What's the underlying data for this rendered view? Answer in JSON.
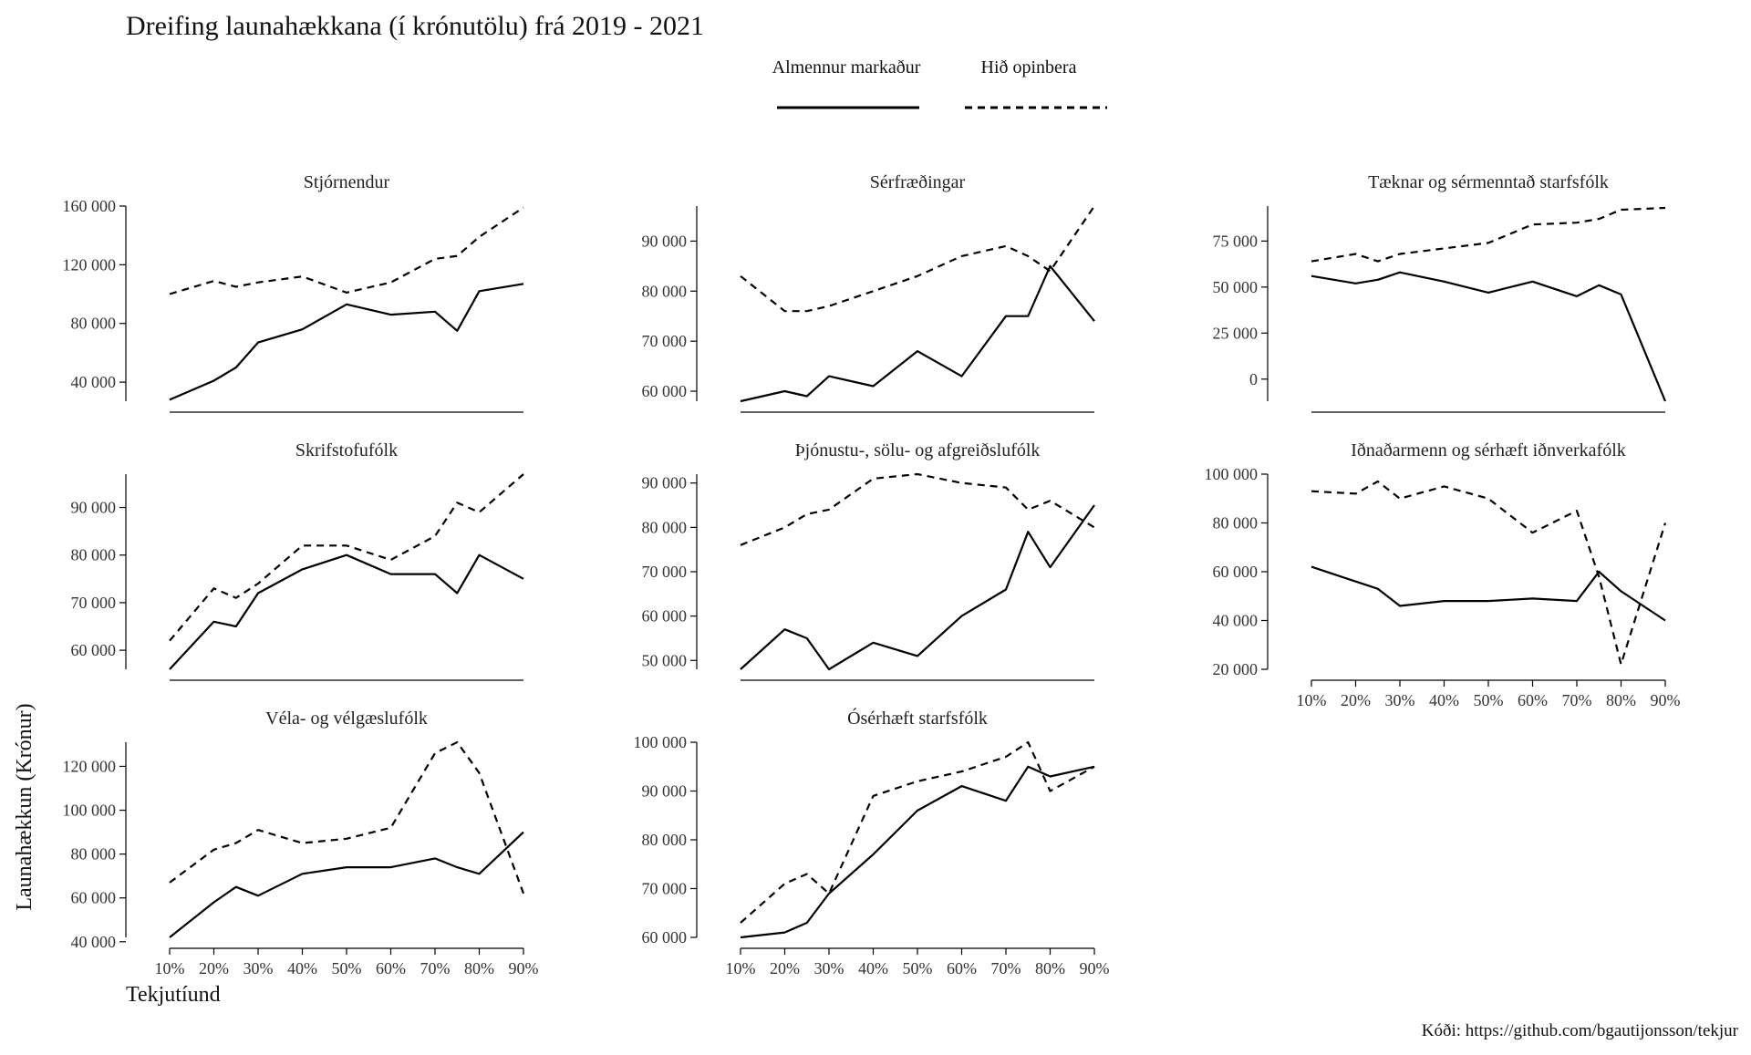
{
  "title": "Dreifing launahækkana (í krónutölu) frá 2019 - 2021",
  "caption": "Kóði: https://github.com/bgautijonsson/tekjur",
  "xlabel": "Tekjutíund",
  "ylabel": "Launahækkun (Krónur)",
  "legend": {
    "items": [
      {
        "label": "Almennur markaður",
        "linetype": "solid"
      },
      {
        "label": "Hið opinbera",
        "linetype": "dashed"
      }
    ]
  },
  "chart_data": {
    "type": "line",
    "layout": "facet",
    "x": [
      10,
      20,
      25,
      30,
      40,
      50,
      60,
      70,
      75,
      80,
      90
    ],
    "x_ticks": [
      10,
      20,
      30,
      40,
      50,
      60,
      70,
      80,
      90
    ],
    "x_tick_labels": [
      "10%",
      "20%",
      "30%",
      "40%",
      "50%",
      "60%",
      "70%",
      "80%",
      "90%"
    ],
    "xlim": [
      10,
      90
    ],
    "panels": [
      {
        "title": "Stjórnendur",
        "ylim": [
          27000,
          160000
        ],
        "y_ticks": [
          40000,
          80000,
          120000,
          160000
        ],
        "y_tick_labels": [
          "40 000",
          "80 000",
          "120 000",
          "160 000"
        ],
        "series": [
          {
            "name": "Almennur markaður",
            "values": [
              28000,
              41000,
              50000,
              67000,
              76000,
              93000,
              86000,
              88000,
              75000,
              102000,
              107000
            ]
          },
          {
            "name": "Hið opinbera",
            "values": [
              100000,
              109000,
              105000,
              108000,
              112000,
              101000,
              108000,
              124000,
              126000,
              139000,
              159000
            ]
          }
        ]
      },
      {
        "title": "Sérfræðingar",
        "ylim": [
          58000,
          97000
        ],
        "y_ticks": [
          60000,
          70000,
          80000,
          90000
        ],
        "y_tick_labels": [
          "60 000",
          "70 000",
          "80 000",
          "90 000"
        ],
        "series": [
          {
            "name": "Almennur markaður",
            "values": [
              58000,
              60000,
              59000,
              63000,
              61000,
              68000,
              63000,
              75000,
              75000,
              85000,
              74000
            ]
          },
          {
            "name": "Hið opinbera",
            "values": [
              83000,
              76000,
              76000,
              77000,
              80000,
              83000,
              87000,
              89000,
              87000,
              84000,
              97000
            ]
          }
        ]
      },
      {
        "title": "Tæknar og sérmenntað starfsfólk",
        "ylim": [
          -12000,
          94000
        ],
        "y_ticks": [
          0,
          25000,
          50000,
          75000
        ],
        "y_tick_labels": [
          "0",
          "25 000",
          "50 000",
          "75 000"
        ],
        "series": [
          {
            "name": "Almennur markaður",
            "values": [
              56000,
              52000,
              54000,
              58000,
              53000,
              47000,
              53000,
              45000,
              51000,
              46000,
              -12000
            ]
          },
          {
            "name": "Hið opinbera",
            "values": [
              64000,
              68000,
              64000,
              68000,
              71000,
              74000,
              84000,
              85000,
              87000,
              92000,
              93000
            ]
          }
        ]
      },
      {
        "title": "Skrifstofufólk",
        "ylim": [
          56000,
          97000
        ],
        "y_ticks": [
          60000,
          70000,
          80000,
          90000
        ],
        "y_tick_labels": [
          "60 000",
          "70 000",
          "80 000",
          "90 000"
        ],
        "series": [
          {
            "name": "Almennur markaður",
            "values": [
              56000,
              66000,
              65000,
              72000,
              77000,
              80000,
              76000,
              76000,
              72000,
              80000,
              75000
            ]
          },
          {
            "name": "Hið opinbera",
            "values": [
              62000,
              73000,
              71000,
              74000,
              82000,
              82000,
              79000,
              84000,
              91000,
              89000,
              97000
            ]
          }
        ]
      },
      {
        "title": "Þjónustu-, sölu- og afgreiðslufólk",
        "ylim": [
          48000,
          92000
        ],
        "y_ticks": [
          50000,
          60000,
          70000,
          80000,
          90000
        ],
        "y_tick_labels": [
          "50 000",
          "60 000",
          "70 000",
          "80 000",
          "90 000"
        ],
        "series": [
          {
            "name": "Almennur markaður",
            "values": [
              48000,
              57000,
              55000,
              48000,
              54000,
              51000,
              60000,
              66000,
              79000,
              71000,
              85000
            ]
          },
          {
            "name": "Hið opinbera",
            "values": [
              76000,
              80000,
              83000,
              84000,
              91000,
              92000,
              90000,
              89000,
              84000,
              86000,
              80000
            ]
          }
        ]
      },
      {
        "title": "Iðnaðarmenn og sérhæft iðnverkafólk",
        "ylim": [
          20000,
          100000
        ],
        "y_ticks": [
          20000,
          40000,
          60000,
          80000,
          100000
        ],
        "y_tick_labels": [
          "20 000",
          "40 000",
          "60 000",
          "80 000",
          "100 000"
        ],
        "series": [
          {
            "name": "Almennur markaður",
            "values": [
              62000,
              56000,
              53000,
              46000,
              48000,
              48000,
              49000,
              48000,
              60000,
              52000,
              40000
            ]
          },
          {
            "name": "Hið opinbera",
            "values": [
              93000,
              92000,
              97000,
              90000,
              95000,
              90000,
              76000,
              85000,
              58000,
              22000,
              80000
            ]
          }
        ]
      },
      {
        "title": "Véla- og vélgæslufólk",
        "ylim": [
          42000,
          131000
        ],
        "y_ticks": [
          40000,
          60000,
          80000,
          100000,
          120000
        ],
        "y_tick_labels": [
          "40 000",
          "60 000",
          "80 000",
          "100 000",
          "120 000"
        ],
        "series": [
          {
            "name": "Almennur markaður",
            "values": [
              42000,
              58000,
              65000,
              61000,
              71000,
              74000,
              74000,
              78000,
              74000,
              71000,
              90000
            ]
          },
          {
            "name": "Hið opinbera",
            "values": [
              67000,
              82000,
              85000,
              91000,
              85000,
              87000,
              92000,
              126000,
              131000,
              117000,
              62000
            ]
          }
        ]
      },
      {
        "title": "Ósérhæft starfsfólk",
        "ylim": [
          60000,
          100000
        ],
        "y_ticks": [
          60000,
          70000,
          80000,
          90000,
          100000
        ],
        "y_tick_labels": [
          "60 000",
          "70 000",
          "80 000",
          "90 000",
          "100 000"
        ],
        "series": [
          {
            "name": "Almennur markaður",
            "values": [
              60000,
              61000,
              63000,
              69000,
              77000,
              86000,
              91000,
              88000,
              95000,
              93000,
              95000
            ]
          },
          {
            "name": "Hið opinbera",
            "values": [
              63000,
              71000,
              73000,
              69000,
              89000,
              92000,
              94000,
              97000,
              100000,
              90000,
              95000
            ]
          }
        ]
      }
    ]
  }
}
